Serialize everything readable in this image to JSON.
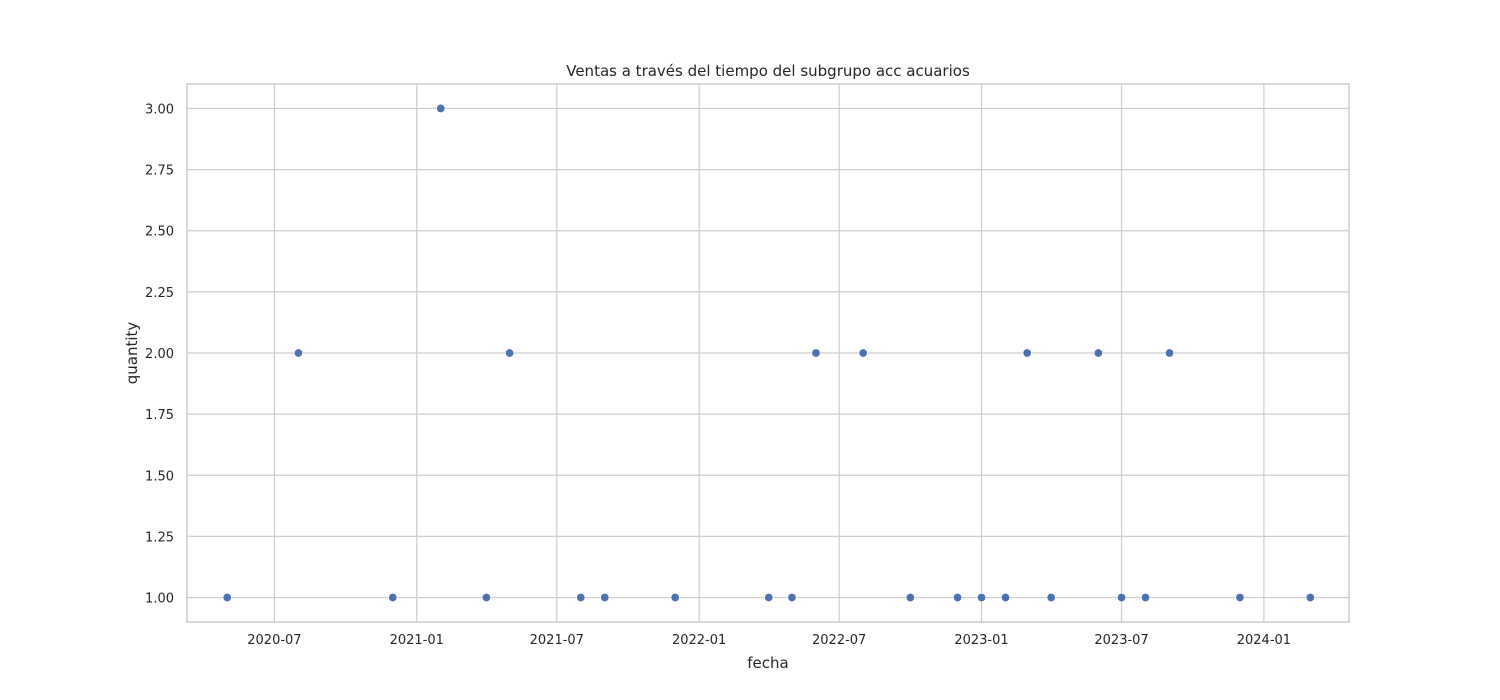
{
  "chart_data": {
    "type": "scatter",
    "title": "Ventas a través del tiempo del subgrupo acc acuarios",
    "xlabel": "fecha",
    "ylabel": "quantity",
    "x_ticks": [
      "2020-07",
      "2021-01",
      "2021-07",
      "2022-01",
      "2022-07",
      "2023-01",
      "2023-07",
      "2024-01"
    ],
    "y_ticks": [
      "1.00",
      "1.25",
      "1.50",
      "1.75",
      "2.00",
      "2.25",
      "2.50",
      "2.75",
      "3.00"
    ],
    "xlim": [
      "2020-03-10",
      "2024-04-20"
    ],
    "ylim": [
      0.9,
      3.1
    ],
    "grid": true,
    "color": "#4c72b0",
    "points": [
      {
        "x": "2020-05-01",
        "y": 1
      },
      {
        "x": "2020-08-01",
        "y": 2
      },
      {
        "x": "2020-12-01",
        "y": 1
      },
      {
        "x": "2021-02-01",
        "y": 3
      },
      {
        "x": "2021-04-01",
        "y": 1
      },
      {
        "x": "2021-05-01",
        "y": 2
      },
      {
        "x": "2021-08-01",
        "y": 1
      },
      {
        "x": "2021-09-01",
        "y": 1
      },
      {
        "x": "2021-12-01",
        "y": 1
      },
      {
        "x": "2022-04-01",
        "y": 1
      },
      {
        "x": "2022-05-01",
        "y": 1
      },
      {
        "x": "2022-06-01",
        "y": 2
      },
      {
        "x": "2022-08-01",
        "y": 2
      },
      {
        "x": "2022-10-01",
        "y": 1
      },
      {
        "x": "2022-12-01",
        "y": 1
      },
      {
        "x": "2023-01-01",
        "y": 1
      },
      {
        "x": "2023-02-01",
        "y": 1
      },
      {
        "x": "2023-03-01",
        "y": 2
      },
      {
        "x": "2023-04-01",
        "y": 1
      },
      {
        "x": "2023-06-01",
        "y": 2
      },
      {
        "x": "2023-07-01",
        "y": 1
      },
      {
        "x": "2023-08-01",
        "y": 1
      },
      {
        "x": "2023-09-01",
        "y": 2
      },
      {
        "x": "2023-12-01",
        "y": 1
      },
      {
        "x": "2024-03-01",
        "y": 1
      }
    ]
  }
}
